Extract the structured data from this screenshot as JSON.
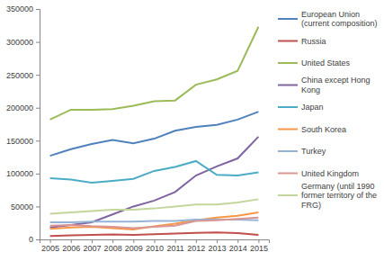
{
  "chart_data": {
    "type": "line",
    "categories": [
      "2005",
      "2006",
      "2007",
      "2008",
      "2009",
      "2010",
      "2011",
      "2012",
      "2013",
      "2014",
      "2015"
    ],
    "series": [
      {
        "name": "European Union (current composition)",
        "color": "#4f81bd",
        "values": [
          127000,
          137000,
          145000,
          151000,
          146000,
          153000,
          165000,
          171000,
          174000,
          182000,
          194000
        ]
      },
      {
        "name": "Russia",
        "color": "#c0504d",
        "values": [
          5000,
          6000,
          7000,
          7500,
          7000,
          8000,
          9000,
          10000,
          10500,
          9500,
          7000
        ]
      },
      {
        "name": "United States",
        "color": "#9bbb59",
        "values": [
          182000,
          197000,
          197000,
          198000,
          203000,
          210000,
          211000,
          235000,
          243000,
          256000,
          323000
        ]
      },
      {
        "name": "China except Hong Kong",
        "color": "#8064a2",
        "values": [
          18000,
          22000,
          26000,
          38000,
          50000,
          59000,
          72000,
          97000,
          111000,
          123000,
          156000
        ]
      },
      {
        "name": "Japan",
        "color": "#4bacc6",
        "values": [
          93000,
          91000,
          86000,
          89000,
          92000,
          104000,
          110000,
          119000,
          98000,
          97000,
          102000
        ]
      },
      {
        "name": "South Korea",
        "color": "#f79646",
        "values": [
          16000,
          18000,
          19000,
          17000,
          15000,
          20000,
          24000,
          29000,
          33000,
          36000,
          41000
        ]
      },
      {
        "name": "Turkey",
        "color": "#95b3d7",
        "values": [
          26000,
          26000,
          27000,
          27000,
          27000,
          28000,
          28000,
          30000,
          30000,
          30000,
          29000
        ]
      },
      {
        "name": "United Kingdom",
        "color": "#d99694",
        "values": [
          21000,
          22000,
          20000,
          19000,
          17000,
          19000,
          21000,
          28000,
          29000,
          31000,
          33000
        ]
      },
      {
        "name": "Germany (until 1990 former territory of the FRG)",
        "color": "#c3d69b",
        "values": [
          39000,
          41000,
          43000,
          45000,
          45000,
          47000,
          50000,
          53000,
          53000,
          56000,
          61000
        ]
      }
    ],
    "ylim": [
      0,
      350000
    ],
    "yticks": [
      0,
      50000,
      100000,
      150000,
      200000,
      250000,
      300000,
      350000
    ],
    "grid": false,
    "legend": "right"
  }
}
